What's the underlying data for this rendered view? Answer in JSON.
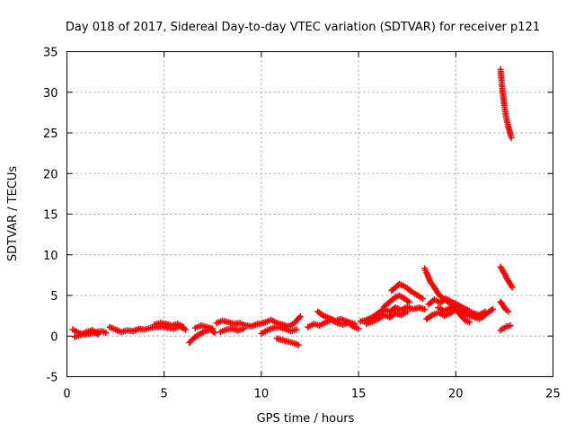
{
  "chart_data": {
    "type": "scatter",
    "title": "Day 018 of 2017, Sidereal Day-to-day VTEC variation (SDTVAR) for receiver p121",
    "xlabel": "GPS time / hours",
    "ylabel": "SDTVAR / TECUs",
    "xlim": [
      0,
      25
    ],
    "ylim": [
      -5,
      35
    ],
    "xticks": [
      "0",
      "5",
      "10",
      "15",
      "20",
      "25"
    ],
    "yticks": [
      "-5",
      "0",
      "5",
      "10",
      "15",
      "20",
      "25",
      "30",
      "35"
    ],
    "grid": true,
    "marker": "plus",
    "color": "#ff0000",
    "segments": [
      [
        [
          0.3,
          0.8
        ],
        [
          0.6,
          0.4
        ],
        [
          0.9,
          0.2
        ],
        [
          1.2,
          0.3
        ],
        [
          1.5,
          0.5
        ],
        [
          1.8,
          0.6
        ],
        [
          2.0,
          0.4
        ]
      ],
      [
        [
          0.4,
          -0.1
        ],
        [
          0.7,
          0.1
        ],
        [
          1.0,
          0.5
        ],
        [
          1.3,
          0.7
        ],
        [
          1.6,
          0.2
        ]
      ],
      [
        [
          2.2,
          1.1
        ],
        [
          2.5,
          0.8
        ],
        [
          2.8,
          0.5
        ],
        [
          3.1,
          0.7
        ],
        [
          3.4,
          0.6
        ],
        [
          3.7,
          0.9
        ],
        [
          4.0,
          0.8
        ],
        [
          4.3,
          1.0
        ],
        [
          4.6,
          1.1
        ],
        [
          4.9,
          1.2
        ],
        [
          5.2,
          1.0
        ],
        [
          5.5,
          0.9
        ],
        [
          5.8,
          1.2
        ],
        [
          6.1,
          0.8
        ]
      ],
      [
        [
          4.5,
          1.4
        ],
        [
          4.8,
          1.6
        ],
        [
          5.1,
          1.5
        ],
        [
          5.4,
          1.3
        ],
        [
          5.7,
          1.5
        ],
        [
          6.0,
          1.1
        ]
      ],
      [
        [
          6.3,
          -0.8
        ],
        [
          6.5,
          -0.3
        ],
        [
          6.8,
          0.2
        ],
        [
          7.1,
          0.6
        ],
        [
          7.4,
          0.8
        ],
        [
          7.6,
          0.4
        ]
      ],
      [
        [
          6.6,
          1.0
        ],
        [
          6.9,
          1.3
        ],
        [
          7.2,
          1.1
        ],
        [
          7.5,
          0.9
        ]
      ],
      [
        [
          7.7,
          1.6
        ],
        [
          8.0,
          1.9
        ],
        [
          8.3,
          1.7
        ],
        [
          8.6,
          1.5
        ],
        [
          8.9,
          1.6
        ],
        [
          9.2,
          1.3
        ],
        [
          9.5,
          1.2
        ],
        [
          9.8,
          1.5
        ]
      ],
      [
        [
          7.9,
          0.5
        ],
        [
          8.2,
          0.8
        ],
        [
          8.5,
          0.9
        ],
        [
          8.8,
          0.7
        ],
        [
          9.1,
          0.9
        ]
      ],
      [
        [
          9.9,
          1.5
        ],
        [
          10.2,
          1.7
        ],
        [
          10.5,
          2.0
        ],
        [
          10.8,
          1.6
        ],
        [
          11.1,
          1.4
        ],
        [
          11.4,
          1.2
        ],
        [
          11.7,
          1.6
        ],
        [
          12.0,
          2.4
        ]
      ],
      [
        [
          10.0,
          0.3
        ],
        [
          10.3,
          0.7
        ],
        [
          10.6,
          1.0
        ],
        [
          10.9,
          1.1
        ],
        [
          11.2,
          0.9
        ],
        [
          11.5,
          0.6
        ],
        [
          11.8,
          0.8
        ]
      ],
      [
        [
          10.8,
          -0.3
        ],
        [
          11.1,
          -0.5
        ],
        [
          11.4,
          -0.7
        ],
        [
          11.7,
          -0.9
        ],
        [
          11.9,
          -1.1
        ]
      ],
      [
        [
          12.4,
          1.1
        ],
        [
          12.7,
          1.5
        ],
        [
          13.0,
          1.3
        ],
        [
          13.3,
          1.7
        ],
        [
          13.6,
          2.0
        ],
        [
          13.9,
          1.6
        ],
        [
          14.2,
          1.4
        ],
        [
          14.5,
          1.7
        ],
        [
          14.8,
          1.5
        ]
      ],
      [
        [
          12.9,
          3.0
        ],
        [
          13.2,
          2.5
        ],
        [
          13.5,
          2.2
        ],
        [
          13.8,
          1.9
        ],
        [
          14.1,
          2.1
        ],
        [
          14.4,
          1.8
        ],
        [
          14.7,
          1.2
        ],
        [
          15.0,
          0.9
        ]
      ],
      [
        [
          15.1,
          1.8
        ],
        [
          15.4,
          2.0
        ],
        [
          15.7,
          2.3
        ],
        [
          16.0,
          2.8
        ],
        [
          16.3,
          3.3
        ],
        [
          16.6,
          3.0
        ],
        [
          16.9,
          3.5
        ],
        [
          17.2,
          3.2
        ],
        [
          17.5,
          3.6
        ],
        [
          17.8,
          3.3
        ],
        [
          18.1,
          3.5
        ],
        [
          18.4,
          3.3
        ]
      ],
      [
        [
          15.4,
          1.5
        ],
        [
          15.7,
          1.8
        ],
        [
          16.0,
          2.1
        ],
        [
          16.3,
          2.6
        ],
        [
          16.6,
          2.3
        ],
        [
          16.9,
          2.8
        ],
        [
          17.2,
          2.6
        ],
        [
          17.5,
          3.0
        ]
      ],
      [
        [
          16.3,
          3.6
        ],
        [
          16.6,
          4.2
        ],
        [
          16.9,
          4.8
        ],
        [
          17.1,
          5.0
        ],
        [
          17.3,
          4.7
        ],
        [
          17.6,
          4.2
        ]
      ],
      [
        [
          16.7,
          5.6
        ],
        [
          16.9,
          6.0
        ],
        [
          17.1,
          6.4
        ],
        [
          17.3,
          6.2
        ],
        [
          17.5,
          5.9
        ],
        [
          17.7,
          5.5
        ],
        [
          17.9,
          5.2
        ],
        [
          18.1,
          4.9
        ],
        [
          18.3,
          4.6
        ]
      ],
      [
        [
          18.4,
          8.3
        ],
        [
          18.5,
          7.8
        ],
        [
          18.6,
          7.2
        ],
        [
          18.7,
          6.6
        ],
        [
          18.9,
          6.0
        ],
        [
          19.1,
          5.2
        ],
        [
          19.3,
          4.7
        ],
        [
          19.5,
          4.4
        ],
        [
          19.7,
          4.0
        ],
        [
          19.9,
          3.6
        ],
        [
          20.1,
          3.0
        ],
        [
          20.3,
          2.4
        ],
        [
          20.5,
          1.9
        ],
        [
          20.7,
          1.7
        ]
      ],
      [
        [
          18.6,
          3.9
        ],
        [
          18.9,
          4.5
        ],
        [
          19.2,
          4.1
        ],
        [
          19.5,
          4.6
        ],
        [
          19.8,
          4.2
        ],
        [
          20.1,
          3.8
        ],
        [
          20.4,
          3.4
        ],
        [
          20.7,
          2.9
        ],
        [
          21.0,
          2.5
        ],
        [
          21.3,
          2.2
        ],
        [
          21.6,
          2.8
        ],
        [
          21.9,
          3.3
        ]
      ],
      [
        [
          18.5,
          2.1
        ],
        [
          18.8,
          2.6
        ],
        [
          19.1,
          2.9
        ],
        [
          19.4,
          2.5
        ],
        [
          19.7,
          2.8
        ],
        [
          20.0,
          3.3
        ],
        [
          20.3,
          3.0
        ],
        [
          20.6,
          2.6
        ],
        [
          20.9,
          2.4
        ],
        [
          21.2,
          2.1
        ]
      ],
      [
        [
          19.1,
          3.5
        ],
        [
          19.4,
          3.1
        ],
        [
          19.7,
          3.4
        ],
        [
          20.0,
          4.0
        ],
        [
          20.3,
          3.6
        ],
        [
          20.6,
          3.2
        ],
        [
          20.9,
          2.8
        ],
        [
          21.2,
          2.6
        ],
        [
          21.5,
          3.0
        ]
      ],
      [
        [
          22.3,
          32.8
        ],
        [
          22.35,
          31.5
        ],
        [
          22.4,
          30.2
        ],
        [
          22.45,
          29.3
        ],
        [
          22.5,
          28.4
        ],
        [
          22.55,
          27.6
        ],
        [
          22.6,
          26.8
        ],
        [
          22.7,
          25.8
        ],
        [
          22.8,
          24.9
        ],
        [
          22.85,
          24.4
        ]
      ],
      [
        [
          22.3,
          8.5
        ],
        [
          22.4,
          8.1
        ],
        [
          22.5,
          7.7
        ],
        [
          22.6,
          7.2
        ],
        [
          22.7,
          6.8
        ],
        [
          22.8,
          6.4
        ],
        [
          22.9,
          6.0
        ]
      ],
      [
        [
          22.3,
          4.2
        ],
        [
          22.4,
          3.9
        ],
        [
          22.5,
          3.5
        ],
        [
          22.6,
          3.2
        ],
        [
          22.7,
          3.0
        ]
      ],
      [
        [
          22.3,
          0.7
        ],
        [
          22.4,
          0.9
        ],
        [
          22.5,
          1.0
        ],
        [
          22.6,
          1.2
        ],
        [
          22.7,
          1.2
        ],
        [
          22.8,
          1.3
        ]
      ]
    ]
  }
}
